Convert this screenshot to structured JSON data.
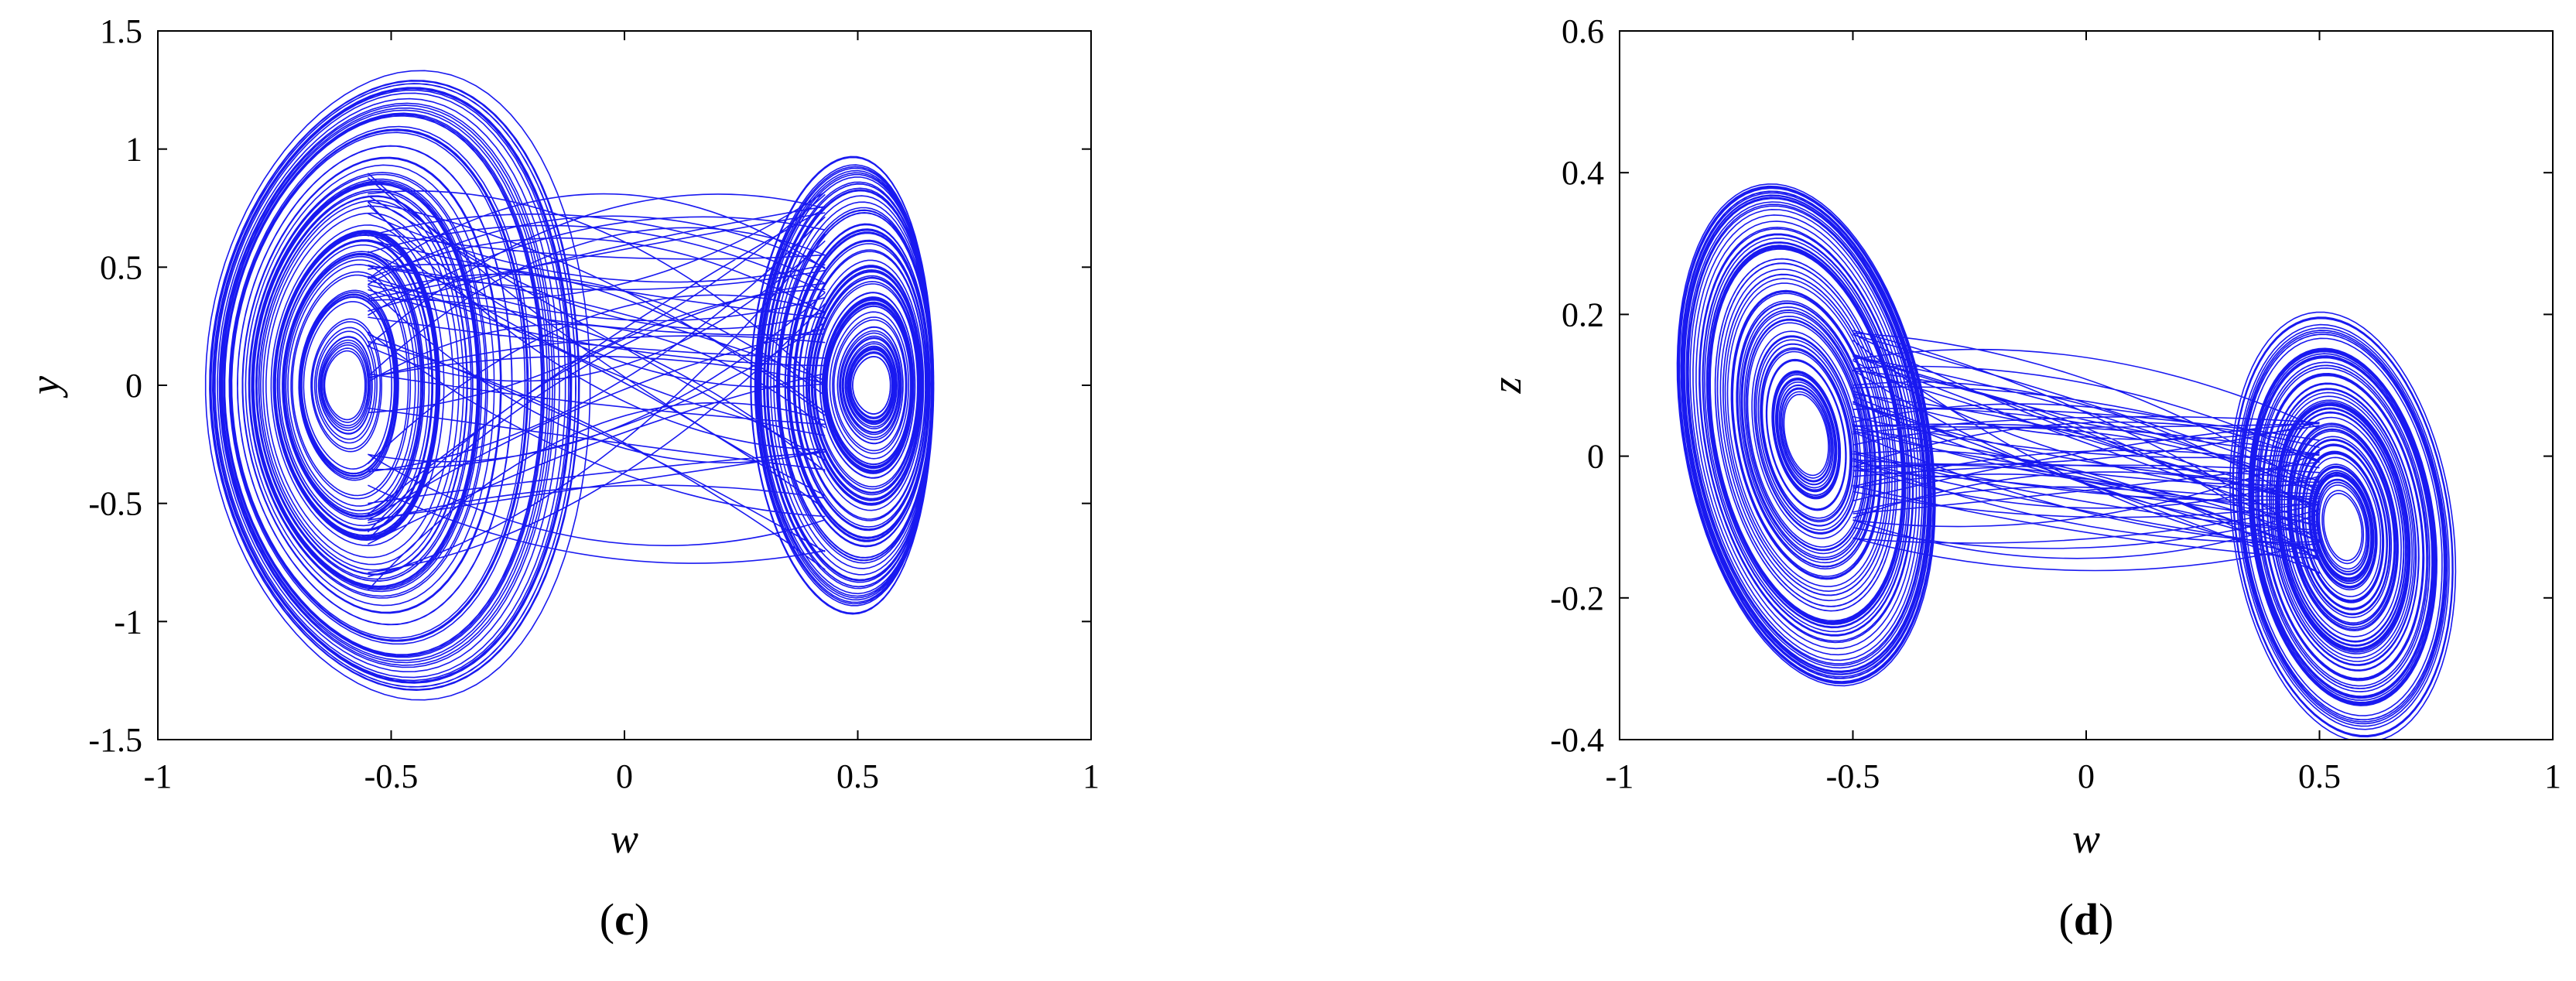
{
  "chart_data": [
    {
      "type": "line",
      "panel_label_open": "(",
      "panel_label_letter": "c",
      "panel_label_close": ")",
      "xlabel": "w",
      "ylabel": "y",
      "xlim": [
        -1,
        1
      ],
      "ylim": [
        -1.5,
        1.5
      ],
      "xticks": [
        "-1",
        "-0.5",
        "0",
        "0.5",
        "1"
      ],
      "yticks": [
        "-1.5",
        "-1",
        "-0.5",
        "0",
        "0.5",
        "1",
        "1.5"
      ],
      "grid": false,
      "color": "#0000ee",
      "description": "phase portrait trajectory (chaotic double-scroll attractor)",
      "left_focus": [
        -0.6,
        0.0
      ],
      "right_focus": [
        0.53,
        0.0
      ],
      "extent_w": [
        -0.84,
        0.78
      ],
      "extent_y": [
        -1.25,
        1.4
      ]
    },
    {
      "type": "line",
      "panel_label_open": "(",
      "panel_label_letter": "d",
      "panel_label_close": ")",
      "xlabel": "w",
      "ylabel": "z",
      "xlim": [
        -1,
        1
      ],
      "ylim": [
        -0.4,
        0.6
      ],
      "xticks": [
        "-1",
        "-0.5",
        "0",
        "0.5",
        "1"
      ],
      "yticks": [
        "-0.4",
        "-0.2",
        "0",
        "0.2",
        "0.4",
        "0.6"
      ],
      "grid": false,
      "color": "#0000ee",
      "description": "phase portrait trajectory (chaotic double-scroll attractor)",
      "left_focus": [
        -0.6,
        0.03
      ],
      "right_focus": [
        0.55,
        -0.1
      ],
      "extent_w": [
        -0.85,
        0.78
      ],
      "extent_z": [
        -0.33,
        0.43
      ]
    }
  ]
}
